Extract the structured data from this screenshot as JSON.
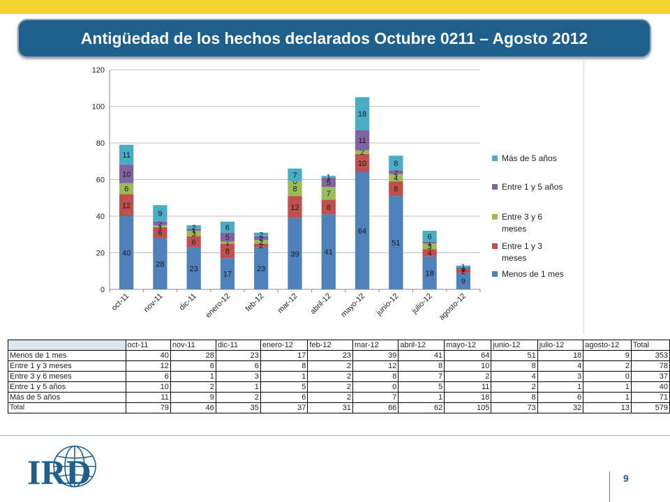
{
  "header": {
    "title": "Antigüedad de los hechos declarados Octubre 0211 – Agosto 2012"
  },
  "page_number": "9",
  "chart_data": {
    "type": "bar",
    "stacked": true,
    "categories": [
      "oct-11",
      "nov-11",
      "dic-11",
      "enero-12",
      "feb-12",
      "mar-12",
      "abril-12",
      "mayo-12",
      "junio-12",
      "julio-12",
      "agosto-12"
    ],
    "ylim": [
      0,
      120
    ],
    "yticks": [
      0,
      20,
      40,
      60,
      80,
      100,
      120
    ],
    "grid": true,
    "legend_position": "right",
    "series": [
      {
        "name": "Menos de 1 mes",
        "color": "#4f81bd",
        "values": [
          40,
          28,
          23,
          17,
          23,
          39,
          41,
          64,
          51,
          18,
          9
        ]
      },
      {
        "name": "Entre 1 y 3 meses",
        "color": "#c0504d",
        "values": [
          12,
          6,
          6,
          8,
          2,
          12,
          8,
          10,
          8,
          4,
          2
        ]
      },
      {
        "name": "Entre 3 y 6 meses",
        "color": "#9bbb59",
        "values": [
          6,
          1,
          3,
          1,
          2,
          8,
          7,
          2,
          4,
          3,
          0
        ]
      },
      {
        "name": "Entre 1 y 5 años",
        "color": "#8064a2",
        "values": [
          10,
          2,
          1,
          5,
          2,
          0,
          5,
          11,
          2,
          1,
          1
        ]
      },
      {
        "name": "Más de 5 años",
        "color": "#4bacc6",
        "values": [
          11,
          9,
          2,
          6,
          2,
          7,
          1,
          18,
          8,
          6,
          1
        ]
      }
    ],
    "legend_order": [
      "Más de 5 años",
      "Entre 1 y 5 años",
      "Entre 3 y 6 meses",
      "Entre 1 y 3 meses",
      "Menos de 1 mes"
    ]
  },
  "table": {
    "columns": [
      "oct-11",
      "nov-11",
      "dic-11",
      "enero-12",
      "feb-12",
      "mar-12",
      "abril-12",
      "mayo-12",
      "junio-12",
      "julio-12",
      "agosto-12",
      "Total"
    ],
    "rows": [
      {
        "label": "Menos de 1 mes",
        "values": [
          "40",
          "28",
          "23",
          "17",
          "23",
          "39",
          "41",
          "64",
          "51",
          "18",
          "9",
          "353"
        ]
      },
      {
        "label": "Entre 1 y 3 meses",
        "values": [
          "12",
          "6",
          "6",
          "8",
          "2",
          "12",
          "8",
          "10",
          "8",
          "4",
          "2",
          "78"
        ]
      },
      {
        "label": "Entre 3 y 6 meses",
        "values": [
          "6",
          "1",
          "3",
          "1",
          "2",
          "8",
          "7",
          "2",
          "4",
          "3",
          "0",
          "37"
        ]
      },
      {
        "label": "Entre 1 y 5 años",
        "values": [
          "10",
          "2",
          "1",
          "5",
          "2",
          "0",
          "5",
          "11",
          "2",
          "1",
          "1",
          "40"
        ]
      },
      {
        "label": "Más de 5 años",
        "values": [
          "11",
          "9",
          "2",
          "6",
          "2",
          "7",
          "1",
          "18",
          "8",
          "6",
          "1",
          "71"
        ]
      },
      {
        "label": "Total",
        "values": [
          "79",
          "46",
          "35",
          "37",
          "31",
          "66",
          "62",
          "105",
          "73",
          "32",
          "13",
          "579"
        ]
      }
    ]
  },
  "logo": {
    "text": "IRD",
    "color": "#1f5f8b"
  }
}
